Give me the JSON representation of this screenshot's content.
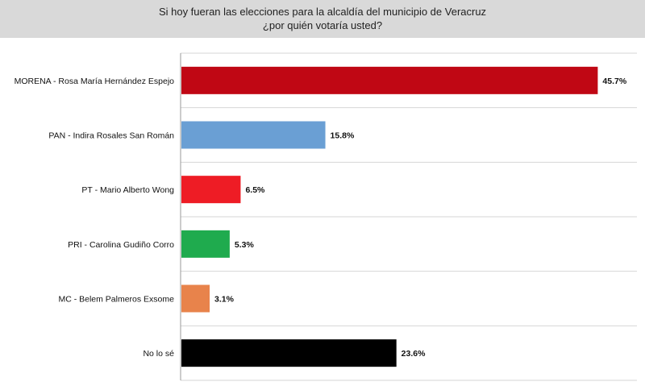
{
  "title_line1": "Si hoy fueran las elecciones para la alcaldía del municipio de Veracruz",
  "title_line2": "¿por quién votaría usted?",
  "chart_data": {
    "type": "bar",
    "orientation": "horizontal",
    "title": "Si hoy fueran las elecciones para la alcaldía del municipio de Veracruz ¿por quién votaría usted?",
    "categories": [
      "MORENA - Rosa María Hernández Espejo",
      "PAN - Indira Rosales San Román",
      "PT - Mario Alberto Wong",
      "PRI - Carolina Gudiño Corro",
      "MC - Belem Palmeros Exsome",
      "No lo sé"
    ],
    "values": [
      45.7,
      15.8,
      6.5,
      5.3,
      3.1,
      23.6
    ],
    "value_labels": [
      "45.7%",
      "15.8%",
      "6.5%",
      "5.3%",
      "3.1%",
      "23.6%"
    ],
    "colors": [
      "#c00714",
      "#6a9fd4",
      "#ee1c25",
      "#1fab4e",
      "#e8834b",
      "#000000"
    ],
    "xlim": [
      0,
      50
    ],
    "grid": true,
    "legend": "none"
  }
}
